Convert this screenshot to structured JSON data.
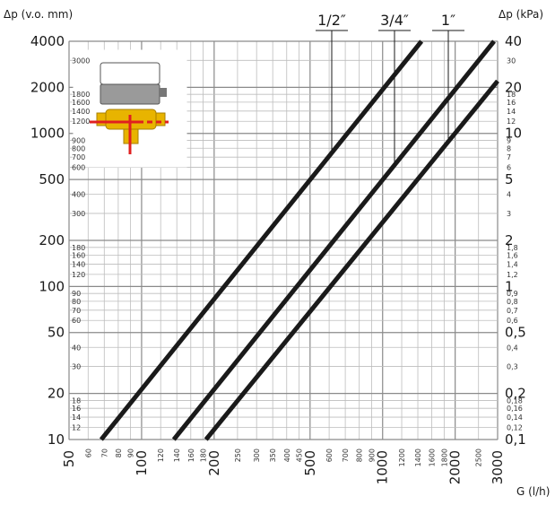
{
  "chart_data": {
    "type": "line",
    "ylabel_left": "Δp (v.o. mm)",
    "ylabel_right": "Δp (kPa)",
    "xlabel": "G (l/h)",
    "x_scale": "log",
    "y_scale": "log",
    "xlim": [
      50,
      3000
    ],
    "ylim": [
      10,
      4000
    ],
    "grid": true,
    "x_major_ticks": [
      "50",
      "100",
      "200",
      "500",
      "1000",
      "2000",
      "3000"
    ],
    "x_minor_ticks": [
      "60",
      "70",
      "80",
      "90",
      "120",
      "140",
      "160",
      "180",
      "250",
      "300",
      "350",
      "400",
      "450",
      "600",
      "700",
      "800",
      "900",
      "1200",
      "1400",
      "1600",
      "1800",
      "2500"
    ],
    "y_left_major_ticks": [
      "10",
      "20",
      "50",
      "100",
      "200",
      "500",
      "1000",
      "2000",
      "4000"
    ],
    "y_left_minor_ticks": [
      "12",
      "14",
      "16",
      "18",
      "30",
      "40",
      "60",
      "70",
      "80",
      "90",
      "120",
      "140",
      "160",
      "180",
      "300",
      "400",
      "600",
      "700",
      "800",
      "900",
      "1200",
      "1400",
      "1600",
      "1800",
      "3000"
    ],
    "y_right_major_ticks": [
      "0,1",
      "0,2",
      "0,5",
      "1",
      "2",
      "5",
      "10",
      "20",
      "40"
    ],
    "y_right_minor_ticks": [
      "0,12",
      "0,14",
      "0,16",
      "0,18",
      "0,3",
      "0,4",
      "0,6",
      "0,7",
      "0,8",
      "0,9",
      "1,2",
      "1,4",
      "1,6",
      "1,8",
      "3",
      "4",
      "6",
      "7",
      "8",
      "9",
      "12",
      "14",
      "16",
      "18",
      "30"
    ],
    "series": [
      {
        "name": "1/2″",
        "x": [
          68,
          1450
        ],
        "y": [
          10,
          4000
        ]
      },
      {
        "name": "3/4″",
        "x": [
          136,
          2900
        ],
        "y": [
          10,
          4000
        ]
      },
      {
        "name": "1″",
        "x": [
          185,
          3000
        ],
        "y": [
          10,
          2200
        ]
      }
    ],
    "line_color": "#1a1a1a",
    "grid_color": "#bdbdbd",
    "inset_marker_color": "#e02020"
  }
}
